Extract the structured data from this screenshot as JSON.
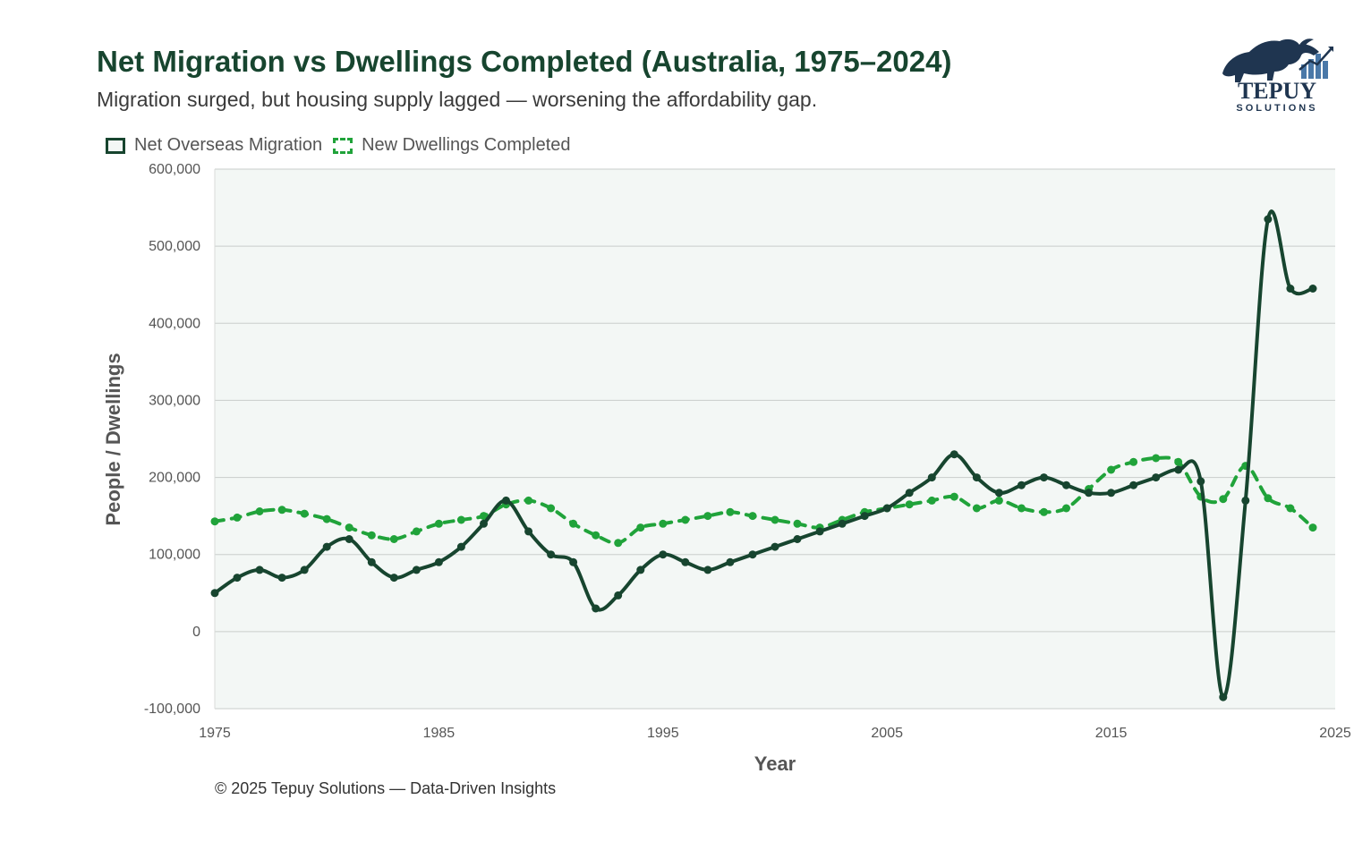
{
  "header": {
    "title": "Net Migration vs Dwellings Completed (Australia, 1975–2024)",
    "subtitle": "Migration surged, but housing supply lagged — worsening the affordability gap."
  },
  "logo": {
    "brand": "TEPUY",
    "tagline": "SOLUTIONS"
  },
  "footer": {
    "text": "© 2025 Tepuy Solutions — Data-Driven Insights"
  },
  "colors": {
    "migration": "#17452f",
    "dwellings": "#20a33a",
    "plot_bg": "#f3f7f5",
    "grid": "#c9cdcb"
  },
  "chart_data": {
    "type": "line",
    "title": "Net Migration vs Dwellings Completed (Australia, 1975–2024)",
    "xlabel": "Year",
    "ylabel": "People / Dwellings",
    "xlim": [
      1975,
      2025
    ],
    "ylim": [
      -100000,
      600000
    ],
    "x_ticks": [
      1975,
      1985,
      1995,
      2005,
      2015,
      2025
    ],
    "x_tick_labels": [
      "1975",
      "1985",
      "1995",
      "2005",
      "2015",
      "2025"
    ],
    "y_ticks": [
      -100000,
      0,
      100000,
      200000,
      300000,
      400000,
      500000,
      600000
    ],
    "y_tick_labels": [
      "-100,000",
      "0",
      "100,000",
      "200,000",
      "300,000",
      "400,000",
      "500,000",
      "600,000"
    ],
    "legend": "top-left",
    "x": [
      1975,
      1976,
      1977,
      1978,
      1979,
      1980,
      1981,
      1982,
      1983,
      1984,
      1985,
      1986,
      1987,
      1988,
      1989,
      1990,
      1991,
      1992,
      1993,
      1994,
      1995,
      1996,
      1997,
      1998,
      1999,
      2000,
      2001,
      2002,
      2003,
      2004,
      2005,
      2006,
      2007,
      2008,
      2009,
      2010,
      2011,
      2012,
      2013,
      2014,
      2015,
      2016,
      2017,
      2018,
      2019,
      2020,
      2021,
      2022,
      2023,
      2024
    ],
    "series": [
      {
        "name": "Net Overseas Migration",
        "style": "solid",
        "values": [
          50000,
          70000,
          80000,
          70000,
          80000,
          110000,
          120000,
          90000,
          70000,
          80000,
          90000,
          110000,
          140000,
          170000,
          130000,
          100000,
          90000,
          30000,
          47000,
          80000,
          100000,
          90000,
          80000,
          90000,
          100000,
          110000,
          120000,
          130000,
          140000,
          150000,
          160000,
          180000,
          200000,
          230000,
          200000,
          180000,
          190000,
          200000,
          190000,
          180000,
          180000,
          190000,
          200000,
          210000,
          195000,
          -85000,
          170000,
          535000,
          445000,
          445000
        ]
      },
      {
        "name": "New Dwellings Completed",
        "style": "dashed",
        "values": [
          143000,
          148000,
          156000,
          158000,
          153000,
          146000,
          135000,
          125000,
          120000,
          130000,
          140000,
          145000,
          150000,
          165000,
          170000,
          160000,
          140000,
          125000,
          115000,
          135000,
          140000,
          145000,
          150000,
          155000,
          150000,
          145000,
          140000,
          135000,
          145000,
          155000,
          160000,
          165000,
          170000,
          175000,
          160000,
          170000,
          160000,
          155000,
          160000,
          185000,
          210000,
          220000,
          225000,
          220000,
          175000,
          172000,
          215000,
          173000,
          160000,
          135000
        ]
      }
    ]
  }
}
